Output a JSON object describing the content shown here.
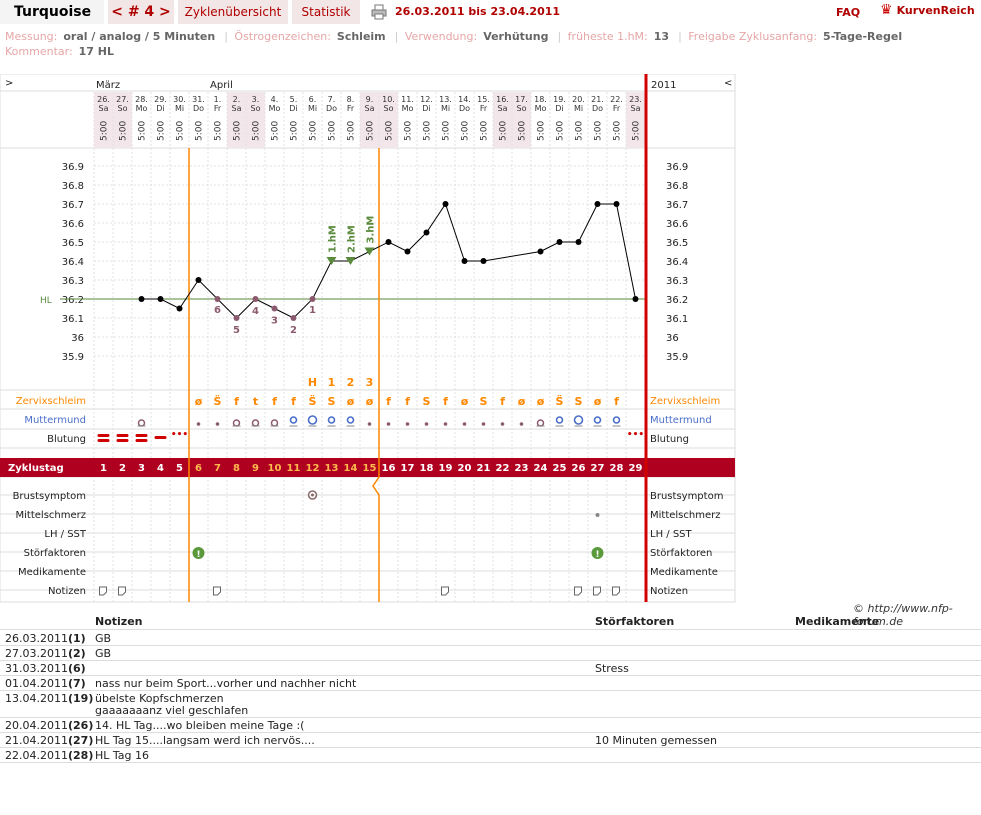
{
  "header": {
    "app_title": "Turquoise",
    "cycle_nav": "< # 4 >",
    "tab_overview": "Zyklenübersicht",
    "tab_stats": "Statistik",
    "date_range": "26.03.2011 bis 23.04.2011",
    "faq": "FAQ",
    "logo_text": "KurvenReich"
  },
  "info": {
    "messung_label": "Messung:",
    "messung_value": "oral / analog / 5 Minuten",
    "oestrogen_label": "Östrogenzeichen:",
    "oestrogen_value": "Schleim",
    "verwendung_label": "Verwendung:",
    "verwendung_value": "Verhütung",
    "hm_label": "früheste 1.hM:",
    "hm_value": "13",
    "freigabe_label": "Freigabe Zyklusanfang:",
    "freigabe_value": "5-Tage-Regel",
    "kommentar_label": "Kommentar:",
    "kommentar_value": "17 HL"
  },
  "chart": {
    "nav_left": ">",
    "nav_right": "<",
    "year": "2011",
    "month1": "März",
    "month2": "April",
    "days": [
      {
        "date": "26.",
        "wd": "Sa",
        "time": "5:00",
        "cd": "1",
        "temp": null
      },
      {
        "date": "27.",
        "wd": "So",
        "time": "5:00",
        "cd": "2",
        "temp": null
      },
      {
        "date": "28.",
        "wd": "Mo",
        "time": "5:00",
        "cd": "3",
        "temp": 36.2
      },
      {
        "date": "29.",
        "wd": "Di",
        "time": "5:00",
        "cd": "4",
        "temp": 36.2
      },
      {
        "date": "30.",
        "wd": "Mi",
        "time": "5:00",
        "cd": "5",
        "temp": 36.15
      },
      {
        "date": "31.",
        "wd": "Do",
        "time": "5:00",
        "cd": "6",
        "temp": 36.3
      },
      {
        "date": "1.",
        "wd": "Fr",
        "time": "5:00",
        "cd": "7",
        "temp": 36.2
      },
      {
        "date": "2.",
        "wd": "Sa",
        "time": "5:00",
        "cd": "8",
        "temp": 36.1
      },
      {
        "date": "3.",
        "wd": "So",
        "time": "5:00",
        "cd": "9",
        "temp": 36.2
      },
      {
        "date": "4.",
        "wd": "Mo",
        "time": "5:00",
        "cd": "10",
        "temp": 36.15
      },
      {
        "date": "5.",
        "wd": "Di",
        "time": "5:00",
        "cd": "11",
        "temp": 36.1
      },
      {
        "date": "6.",
        "wd": "Mi",
        "time": "5:00",
        "cd": "12",
        "temp": 36.2
      },
      {
        "date": "7.",
        "wd": "Do",
        "time": "5:00",
        "cd": "13",
        "temp": 36.4
      },
      {
        "date": "8.",
        "wd": "Fr",
        "time": "5:00",
        "cd": "14",
        "temp": 36.4
      },
      {
        "date": "9.",
        "wd": "Sa",
        "time": "5:00",
        "cd": "15",
        "temp": 36.45
      },
      {
        "date": "10.",
        "wd": "So",
        "time": "5:00",
        "cd": "16",
        "temp": 36.5
      },
      {
        "date": "11.",
        "wd": "Mo",
        "time": "5:00",
        "cd": "17",
        "temp": 36.45
      },
      {
        "date": "12.",
        "wd": "Di",
        "time": "5:00",
        "cd": "18",
        "temp": 36.55
      },
      {
        "date": "13.",
        "wd": "Mi",
        "time": "5:00",
        "cd": "19",
        "temp": 36.7
      },
      {
        "date": "14.",
        "wd": "Do",
        "time": "5:00",
        "cd": "20",
        "temp": 36.4
      },
      {
        "date": "15.",
        "wd": "Fr",
        "time": "5:00",
        "cd": "21",
        "temp": 36.4
      },
      {
        "date": "16.",
        "wd": "Sa",
        "time": "5:00",
        "cd": "22",
        "temp": null
      },
      {
        "date": "17.",
        "wd": "So",
        "time": "5:00",
        "cd": "23",
        "temp": null
      },
      {
        "date": "18.",
        "wd": "Mo",
        "time": "5:00",
        "cd": "24",
        "temp": 36.45
      },
      {
        "date": "19.",
        "wd": "Di",
        "time": "5:00",
        "cd": "25",
        "temp": 36.5
      },
      {
        "date": "20.",
        "wd": "Mi",
        "time": "5:00",
        "cd": "26",
        "temp": 36.5
      },
      {
        "date": "21.",
        "wd": "Do",
        "time": "5:00",
        "cd": "27",
        "temp": 36.7
      },
      {
        "date": "22.",
        "wd": "Fr",
        "time": "5:00",
        "cd": "28",
        "temp": 36.7
      },
      {
        "date": "23.",
        "wd": "Sa",
        "time": "5:00",
        "cd": "29",
        "temp": 36.2
      }
    ],
    "y_ticks": [
      "36.9",
      "36.8",
      "36.7",
      "36.6",
      "36.5",
      "36.4",
      "36.3",
      "36.2",
      "36.1",
      "36",
      "35.9"
    ],
    "hl_label": "HL",
    "hl_value": 36.2,
    "low_labels": [
      {
        "day": 7,
        "text": "6"
      },
      {
        "day": 8,
        "text": "5"
      },
      {
        "day": 9,
        "text": "4"
      },
      {
        "day": 10,
        "text": "3"
      },
      {
        "day": 11,
        "text": "2"
      },
      {
        "day": 12,
        "text": "1"
      }
    ],
    "hm_labels": [
      {
        "day": 13,
        "text": "1.hM"
      },
      {
        "day": 14,
        "text": "2.hM"
      },
      {
        "day": 15,
        "text": "3.hM"
      }
    ],
    "peak_labels": [
      {
        "day": 12,
        "text": "H"
      },
      {
        "day": 13,
        "text": "1"
      },
      {
        "day": 14,
        "text": "2"
      },
      {
        "day": 15,
        "text": "3"
      }
    ],
    "cervical_mucus": [
      "",
      "",
      "",
      "",
      "",
      "ø",
      "S̈",
      "f",
      "t",
      "f",
      "f",
      "S̈",
      "S",
      "ø",
      "ø",
      "f",
      "f",
      "S",
      "f",
      "ø",
      "S",
      "f",
      "ø",
      "ø",
      "S̈",
      "S",
      "ø",
      "f",
      ""
    ],
    "row_labels": {
      "zervixschleim": "Zervixschleim",
      "muttermund": "Muttermund",
      "blutung": "Blutung",
      "zyklustag": "Zyklustag",
      "brustsymptom": "Brustsymptom",
      "mittelschmerz": "Mittelschmerz",
      "lh": "LH / SST",
      "stoerfaktoren": "Störfaktoren",
      "medikamente": "Medikamente",
      "notizen": "Notizen"
    },
    "colors": {
      "accent": "#b00020",
      "orange": "#ff8800",
      "green": "#5a8a3c",
      "mauve": "#8c5a6e",
      "blue": "#4a6ec8"
    }
  },
  "copyright": "© http://www.nfp-forum.de",
  "notes": {
    "headers": {
      "notizen": "Notizen",
      "stoerfaktoren": "Störfaktoren",
      "medikamente": "Medikamente"
    },
    "rows": [
      {
        "date": "26.03.2011",
        "day": "(1)",
        "note": "GB",
        "stoer": ""
      },
      {
        "date": "27.03.2011",
        "day": "(2)",
        "note": "GB",
        "stoer": ""
      },
      {
        "date": "31.03.2011",
        "day": "(6)",
        "note": "",
        "stoer": "Stress"
      },
      {
        "date": "01.04.2011",
        "day": "(7)",
        "note": "nass nur beim Sport...vorher und nachher nicht",
        "stoer": ""
      },
      {
        "date": "13.04.2011",
        "day": "(19)",
        "note": "übelste Kopfschmerzen",
        "note2": "gaaaaaaanz viel geschlafen",
        "stoer": ""
      },
      {
        "date": "20.04.2011",
        "day": "(26)",
        "note": "14. HL Tag....wo bleiben meine Tage :(",
        "stoer": ""
      },
      {
        "date": "21.04.2011",
        "day": "(27)",
        "note": "HL Tag 15....langsam werd ich nervös....",
        "stoer": "10 Minuten gemessen"
      },
      {
        "date": "22.04.2011",
        "day": "(28)",
        "note": "HL Tag 16",
        "stoer": ""
      }
    ]
  }
}
